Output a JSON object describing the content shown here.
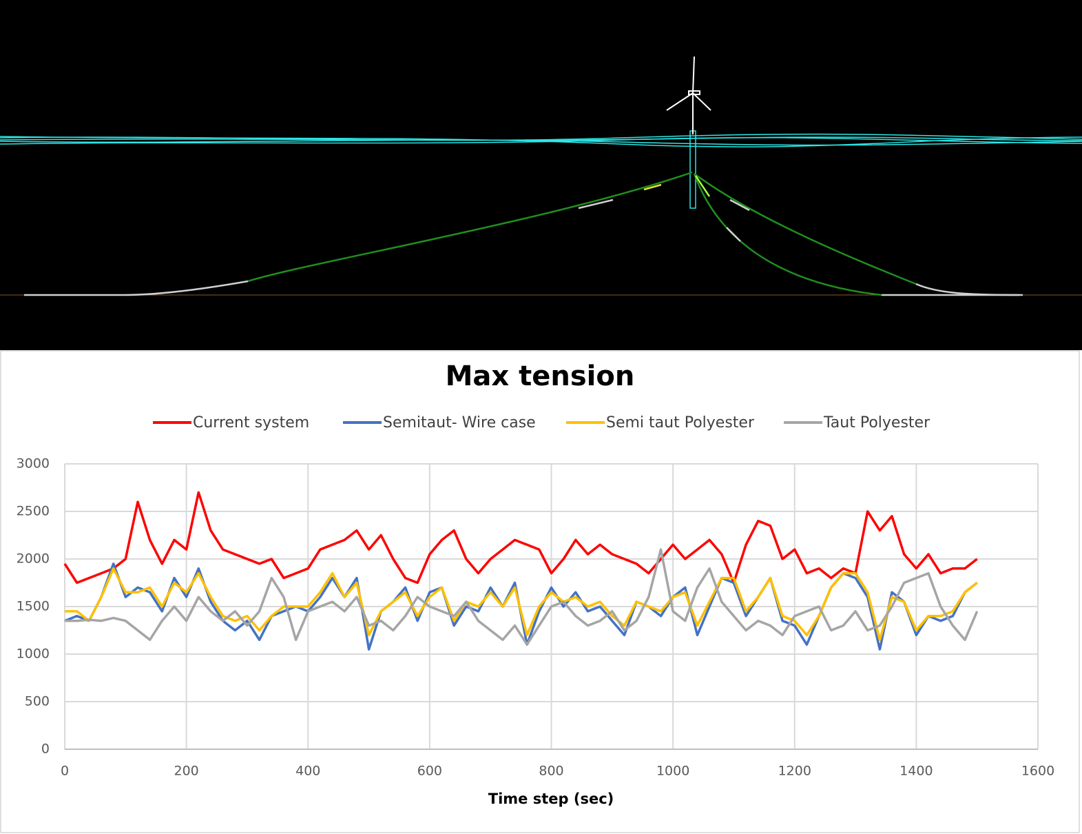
{
  "chart_data": {
    "type": "line",
    "title": "Max tension",
    "x_label": "Time step (sec)",
    "x": [
      0,
      20,
      40,
      60,
      80,
      100,
      120,
      140,
      160,
      180,
      200,
      220,
      240,
      260,
      280,
      300,
      320,
      340,
      360,
      380,
      400,
      420,
      440,
      460,
      480,
      500,
      520,
      540,
      560,
      580,
      600,
      620,
      640,
      660,
      680,
      700,
      720,
      740,
      760,
      780,
      800,
      820,
      840,
      860,
      880,
      900,
      920,
      940,
      960,
      980,
      1000,
      1020,
      1040,
      1060,
      1080,
      1100,
      1120,
      1140,
      1160,
      1180,
      1200,
      1220,
      1240,
      1260,
      1280,
      1300,
      1320,
      1340,
      1360,
      1380,
      1400,
      1420,
      1440,
      1460,
      1480,
      1500
    ],
    "series": [
      {
        "name": "Current system",
        "color": "#ff0000",
        "values": [
          1950,
          1750,
          1800,
          1850,
          1900,
          2000,
          2600,
          2200,
          1950,
          2200,
          2100,
          2700,
          2300,
          2100,
          2050,
          2000,
          1950,
          2000,
          1800,
          1850,
          1900,
          2100,
          2150,
          2200,
          2300,
          2100,
          2250,
          2000,
          1800,
          1750,
          2050,
          2200,
          2300,
          2000,
          1850,
          2000,
          2100,
          2200,
          2150,
          2100,
          1850,
          2000,
          2200,
          2050,
          2150,
          2050,
          2000,
          1950,
          1850,
          2000,
          2150,
          2000,
          2100,
          2200,
          2050,
          1750,
          2150,
          2400,
          2350,
          2000,
          2100,
          1850,
          1900,
          1800,
          1900,
          1850,
          2500,
          2300,
          2450,
          2050,
          1900,
          2050,
          1850,
          1900,
          1900,
          2000
        ]
      },
      {
        "name": "Semitaut- Wire case",
        "color": "#4472c4",
        "values": [
          1350,
          1400,
          1350,
          1600,
          1950,
          1600,
          1700,
          1650,
          1450,
          1800,
          1600,
          1900,
          1550,
          1350,
          1250,
          1350,
          1150,
          1400,
          1450,
          1500,
          1450,
          1600,
          1800,
          1600,
          1800,
          1050,
          1450,
          1550,
          1700,
          1350,
          1650,
          1700,
          1300,
          1500,
          1450,
          1700,
          1500,
          1750,
          1100,
          1450,
          1700,
          1500,
          1650,
          1450,
          1500,
          1350,
          1200,
          1550,
          1500,
          1400,
          1600,
          1700,
          1200,
          1500,
          1800,
          1750,
          1400,
          1600,
          1800,
          1350,
          1300,
          1100,
          1400,
          1700,
          1850,
          1800,
          1600,
          1050,
          1650,
          1550,
          1200,
          1400,
          1350,
          1400,
          1650,
          1750
        ]
      },
      {
        "name": "Semi taut Polyester",
        "color": "#ffc000",
        "values": [
          1450,
          1450,
          1350,
          1600,
          1900,
          1650,
          1650,
          1700,
          1500,
          1750,
          1650,
          1850,
          1600,
          1400,
          1350,
          1400,
          1250,
          1400,
          1500,
          1500,
          1500,
          1650,
          1850,
          1600,
          1750,
          1200,
          1450,
          1550,
          1650,
          1400,
          1600,
          1700,
          1350,
          1550,
          1500,
          1650,
          1500,
          1700,
          1200,
          1500,
          1650,
          1550,
          1600,
          1500,
          1550,
          1400,
          1300,
          1550,
          1500,
          1450,
          1600,
          1650,
          1300,
          1550,
          1800,
          1800,
          1450,
          1600,
          1800,
          1400,
          1350,
          1200,
          1400,
          1700,
          1850,
          1850,
          1650,
          1150,
          1600,
          1550,
          1250,
          1400,
          1400,
          1450,
          1650,
          1750
        ]
      },
      {
        "name": "Taut Polyester",
        "color": "#a5a5a5",
        "values": [
          1350,
          1350,
          1360,
          1350,
          1380,
          1350,
          1250,
          1150,
          1350,
          1500,
          1350,
          1600,
          1450,
          1350,
          1450,
          1300,
          1450,
          1800,
          1600,
          1150,
          1450,
          1500,
          1550,
          1450,
          1600,
          1300,
          1350,
          1250,
          1400,
          1600,
          1500,
          1450,
          1400,
          1550,
          1350,
          1250,
          1150,
          1300,
          1100,
          1300,
          1500,
          1550,
          1400,
          1300,
          1350,
          1450,
          1250,
          1350,
          1600,
          2100,
          1450,
          1350,
          1700,
          1900,
          1550,
          1400,
          1250,
          1350,
          1300,
          1200,
          1400,
          1450,
          1500,
          1250,
          1300,
          1450,
          1250,
          1300,
          1500,
          1750,
          1800,
          1850,
          1500,
          1300,
          1150,
          1450
        ]
      }
    ],
    "xlim": [
      0,
      1600
    ],
    "xticks": [
      0,
      200,
      400,
      600,
      800,
      1000,
      1200,
      1400,
      1600
    ],
    "ylim": [
      0,
      3000
    ],
    "yticks": [
      0,
      500,
      1000,
      1500,
      2000,
      2500,
      3000
    ],
    "grid": true
  }
}
